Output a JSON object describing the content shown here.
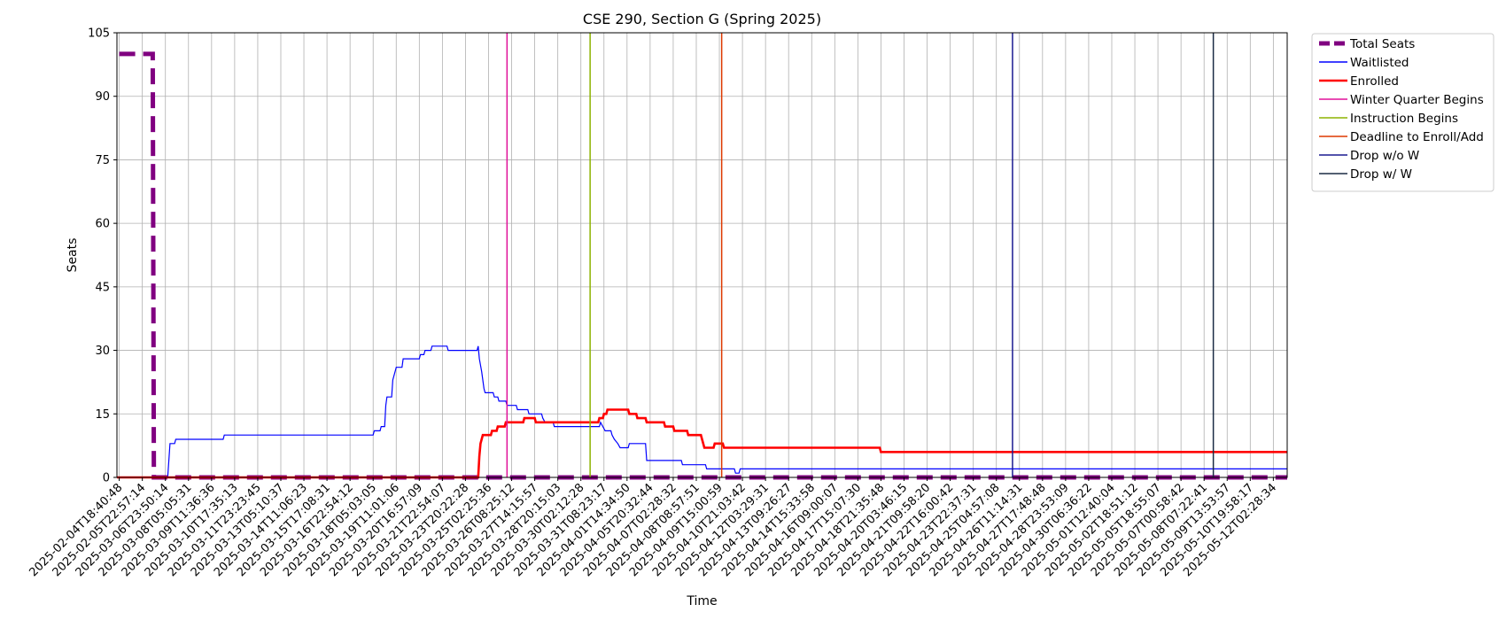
{
  "chart_data": {
    "type": "line",
    "title": "CSE 290, Section G (Spring 2025)",
    "xlabel": "Time",
    "ylabel": "Seats",
    "ylim": [
      0,
      105
    ],
    "yticks": [
      0,
      15,
      30,
      45,
      60,
      75,
      90,
      105
    ],
    "grid": true,
    "legend_position": "outside-top-right",
    "x_ticks": [
      "2025-02-04T18:40:48",
      "2025-02-05T22:57:14",
      "2025-03-06T23:50:14",
      "2025-03-08T05:05:31",
      "2025-03-09T11:36:36",
      "2025-03-10T17:35:13",
      "2025-03-11T23:23:45",
      "2025-03-13T05:10:37",
      "2025-03-14T11:06:23",
      "2025-03-15T17:08:31",
      "2025-03-16T22:54:12",
      "2025-03-18T05:03:05",
      "2025-03-19T11:01:06",
      "2025-03-20T16:57:09",
      "2025-03-21T22:54:07",
      "2025-03-23T20:22:28",
      "2025-03-25T02:25:36",
      "2025-03-26T08:25:12",
      "2025-03-27T14:15:57",
      "2025-03-28T20:15:03",
      "2025-03-30T02:12:28",
      "2025-03-31T08:23:17",
      "2025-04-01T14:34:50",
      "2025-04-05T20:32:44",
      "2025-04-07T02:28:32",
      "2025-04-08T08:57:51",
      "2025-04-09T15:00:59",
      "2025-04-10T21:03:42",
      "2025-04-12T03:29:31",
      "2025-04-13T09:26:27",
      "2025-04-14T15:33:58",
      "2025-04-16T09:00:07",
      "2025-04-17T15:07:30",
      "2025-04-18T21:35:48",
      "2025-04-20T03:46:15",
      "2025-04-21T09:58:20",
      "2025-04-22T16:00:42",
      "2025-04-23T22:37:31",
      "2025-04-25T04:57:08",
      "2025-04-26T11:14:31",
      "2025-04-27T17:48:48",
      "2025-04-28T23:53:09",
      "2025-04-30T06:36:22",
      "2025-05-01T12:40:04",
      "2025-05-02T18:51:12",
      "2025-05-05T18:55:07",
      "2025-05-07T00:58:42",
      "2025-05-08T07:22:41",
      "2025-05-09T13:53:57",
      "2025-05-10T19:58:17",
      "2025-05-12T02:28:34"
    ],
    "x_range_ticks": [
      -0.1,
      50.6
    ],
    "series": [
      {
        "name": "Total Seats",
        "color": "#800080",
        "style": "dashed",
        "points": [
          [
            0,
            100
          ],
          [
            1.45,
            100
          ],
          [
            1.5,
            0
          ],
          [
            50.6,
            0
          ]
        ]
      },
      {
        "name": "Waitlisted",
        "color": "#0000ff",
        "style": "solid",
        "points": [
          [
            -0.1,
            0
          ],
          [
            2.1,
            0
          ],
          [
            2.2,
            8
          ],
          [
            2.4,
            8
          ],
          [
            2.45,
            9
          ],
          [
            4.5,
            9
          ],
          [
            4.55,
            10
          ],
          [
            11,
            10
          ],
          [
            11.05,
            11
          ],
          [
            11.3,
            11
          ],
          [
            11.35,
            12
          ],
          [
            11.5,
            12
          ],
          [
            11.55,
            17
          ],
          [
            11.6,
            19
          ],
          [
            11.8,
            19
          ],
          [
            11.85,
            23
          ],
          [
            11.95,
            25
          ],
          [
            12.0,
            26
          ],
          [
            12.25,
            26
          ],
          [
            12.3,
            28
          ],
          [
            13,
            28
          ],
          [
            13.05,
            29
          ],
          [
            13.2,
            29
          ],
          [
            13.25,
            30
          ],
          [
            13.5,
            30
          ],
          [
            13.55,
            31
          ],
          [
            14.2,
            31
          ],
          [
            14.25,
            30
          ],
          [
            15.5,
            30
          ],
          [
            15.55,
            31
          ],
          [
            15.6,
            28
          ],
          [
            15.7,
            25
          ],
          [
            15.8,
            21
          ],
          [
            15.85,
            20
          ],
          [
            16.2,
            20
          ],
          [
            16.25,
            19
          ],
          [
            16.4,
            19
          ],
          [
            16.45,
            18
          ],
          [
            16.75,
            18
          ],
          [
            16.8,
            17
          ],
          [
            17.2,
            17
          ],
          [
            17.25,
            16
          ],
          [
            17.7,
            16
          ],
          [
            17.75,
            15
          ],
          [
            18.3,
            15
          ],
          [
            18.35,
            14
          ],
          [
            18.45,
            13
          ],
          [
            18.8,
            13
          ],
          [
            18.85,
            12
          ],
          [
            20.8,
            12
          ],
          [
            20.85,
            13
          ],
          [
            20.95,
            12
          ],
          [
            21.05,
            11
          ],
          [
            21.3,
            11
          ],
          [
            21.35,
            10
          ],
          [
            21.45,
            9
          ],
          [
            21.6,
            8
          ],
          [
            21.7,
            7
          ],
          [
            22.05,
            7
          ],
          [
            22.1,
            8
          ],
          [
            22.8,
            8
          ],
          [
            22.85,
            4
          ],
          [
            24.35,
            4
          ],
          [
            24.4,
            3
          ],
          [
            25.4,
            3
          ],
          [
            25.45,
            2
          ],
          [
            26.65,
            2
          ],
          [
            26.7,
            1
          ],
          [
            26.85,
            1
          ],
          [
            26.9,
            2
          ],
          [
            50.6,
            2
          ]
        ]
      },
      {
        "name": "Enrolled",
        "color": "#ff0000",
        "style": "solid",
        "points": [
          [
            -0.1,
            0
          ],
          [
            15.55,
            0
          ],
          [
            15.6,
            5
          ],
          [
            15.65,
            8
          ],
          [
            15.7,
            9
          ],
          [
            15.75,
            10
          ],
          [
            16.1,
            10
          ],
          [
            16.15,
            11
          ],
          [
            16.35,
            11
          ],
          [
            16.4,
            12
          ],
          [
            16.7,
            12
          ],
          [
            16.75,
            13
          ],
          [
            17.5,
            13
          ],
          [
            17.55,
            14
          ],
          [
            18.0,
            14
          ],
          [
            18.05,
            13
          ],
          [
            20.75,
            13
          ],
          [
            20.8,
            14
          ],
          [
            20.95,
            14
          ],
          [
            21.0,
            15
          ],
          [
            21.1,
            15
          ],
          [
            21.15,
            16
          ],
          [
            22.05,
            16
          ],
          [
            22.1,
            15
          ],
          [
            22.4,
            15
          ],
          [
            22.45,
            14
          ],
          [
            22.8,
            14
          ],
          [
            22.85,
            13
          ],
          [
            23.6,
            13
          ],
          [
            23.65,
            12
          ],
          [
            24.0,
            12
          ],
          [
            24.05,
            11
          ],
          [
            24.6,
            11
          ],
          [
            24.65,
            10
          ],
          [
            25.2,
            10
          ],
          [
            25.25,
            9
          ],
          [
            25.35,
            7
          ],
          [
            25.75,
            7
          ],
          [
            25.8,
            8
          ],
          [
            26.15,
            8
          ],
          [
            26.2,
            7
          ],
          [
            32.95,
            7
          ],
          [
            33.0,
            6
          ],
          [
            50.6,
            6
          ]
        ]
      },
      {
        "name": "Winter Quarter Begins",
        "color": "#e0119a",
        "style": "vline",
        "x": 16.8
      },
      {
        "name": "Instruction Begins",
        "color": "#8db300",
        "style": "vline",
        "x": 20.4
      },
      {
        "name": "Deadline to Enroll/Add",
        "color": "#dd3900",
        "style": "vline",
        "x": 26.1
      },
      {
        "name": "Drop w/o W",
        "color": "#1a1a90",
        "style": "vline",
        "x": 38.7
      },
      {
        "name": "Drop w/ W",
        "color": "#1b2b44",
        "style": "vline",
        "x": 47.4
      }
    ]
  }
}
